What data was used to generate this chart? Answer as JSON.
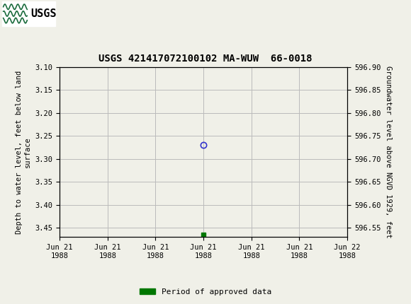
{
  "title": "USGS 421417072100102 MA-WUW  66-0018",
  "ylabel_left": "Depth to water level, feet below land\nsurface",
  "ylabel_right": "Groundwater level above NGVD 1929, feet",
  "ylim_left_top": 3.1,
  "ylim_left_bottom": 3.47,
  "ylim_right_top": 596.9,
  "ylim_right_bottom": 596.53,
  "yticks_left": [
    3.1,
    3.15,
    3.2,
    3.25,
    3.3,
    3.35,
    3.4,
    3.45
  ],
  "yticks_right": [
    596.9,
    596.85,
    596.8,
    596.75,
    596.7,
    596.65,
    596.6,
    596.55
  ],
  "x_num_circle": 12.0,
  "y_data_circle": 3.27,
  "x_num_square": 12.0,
  "y_data_square": 3.465,
  "circle_color": "#3333cc",
  "square_color": "#007700",
  "header_bg_color": "#1a6b3c",
  "header_logo_bg": "#ffffff",
  "background_color": "#f0f0e8",
  "plot_bg_color": "#f0f0e8",
  "grid_color": "#bbbbbb",
  "xtick_labels": [
    "Jun 21\n1988",
    "Jun 21\n1988",
    "Jun 21\n1988",
    "Jun 21\n1988",
    "Jun 21\n1988",
    "Jun 21\n1988",
    "Jun 22\n1988"
  ],
  "legend_label": "Period of approved data",
  "legend_color": "#007700",
  "xlim": [
    0,
    24
  ],
  "x_ticks": [
    0.0,
    4.0,
    8.0,
    12.0,
    16.0,
    20.0,
    24.0
  ],
  "title_fontsize": 10,
  "tick_fontsize": 7.5,
  "ylabel_fontsize": 7.5,
  "legend_fontsize": 8
}
